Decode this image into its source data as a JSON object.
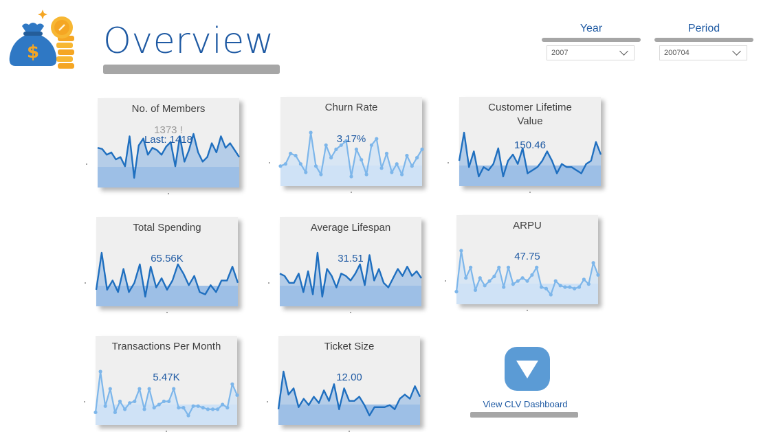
{
  "header": {
    "title": "Overview",
    "logo_icon": "money-bag-coins-icon"
  },
  "filters": {
    "year": {
      "label": "Year",
      "value": "2007"
    },
    "period": {
      "label": "Period",
      "value": "200704"
    }
  },
  "colors": {
    "accent": "#1f5aa3",
    "line_dark": "#1f6fbf",
    "line_light": "#7db6ea",
    "fill_dark": "#9dbfe6",
    "fill_light": "#cfe2f6",
    "card_bg": "#efefef",
    "bar_grey": "#a6a6a6"
  },
  "cards": [
    {
      "title": "No. of Members",
      "value": "Last: 1418",
      "ghost": "1373 !",
      "style": "dark",
      "series": [
        30,
        29,
        24,
        26,
        20,
        22,
        14,
        40,
        4,
        32,
        38,
        24,
        30,
        28,
        24,
        31,
        35,
        14,
        40,
        18,
        28,
        42,
        26,
        18,
        22,
        34,
        26,
        40,
        30,
        34,
        28,
        22
      ]
    },
    {
      "title": "Churn Rate",
      "value": "3.17%",
      "style": "light",
      "series": [
        14,
        16,
        26,
        24,
        16,
        8,
        46,
        14,
        6,
        34,
        22,
        30,
        34,
        38,
        4,
        30,
        20,
        6,
        34,
        40,
        12,
        26,
        8,
        16,
        6,
        24,
        14,
        22,
        30
      ]
    },
    {
      "title": "Customer Lifetime\nValue",
      "value": "150.46",
      "style": "dark",
      "series": [
        30,
        48,
        26,
        36,
        20,
        26,
        24,
        28,
        38,
        20,
        30,
        34,
        28,
        38,
        22,
        24,
        26,
        30,
        36,
        30,
        22,
        28,
        26,
        26,
        24,
        22,
        28,
        30,
        42,
        34
      ]
    },
    {
      "title": "Total Spending",
      "value": "65.56K",
      "style": "dark",
      "series": [
        26,
        58,
        26,
        34,
        24,
        44,
        24,
        32,
        48,
        20,
        46,
        28,
        36,
        26,
        34,
        48,
        40,
        30,
        38,
        24,
        22,
        30,
        24,
        34,
        34,
        46,
        32
      ]
    },
    {
      "title": "Average Lifespan",
      "value": "31.51",
      "style": "dark",
      "series": [
        36,
        34,
        28,
        28,
        36,
        20,
        38,
        18,
        54,
        16,
        40,
        34,
        24,
        36,
        34,
        30,
        36,
        44,
        26,
        52,
        30,
        40,
        28,
        24,
        32,
        40,
        34,
        42,
        34,
        38,
        32
      ]
    },
    {
      "title": "ARPU",
      "value": "47.75",
      "style": "light",
      "series": [
        6,
        60,
        24,
        38,
        8,
        24,
        14,
        20,
        26,
        38,
        12,
        38,
        16,
        20,
        24,
        20,
        28,
        38,
        12,
        10,
        2,
        20,
        14,
        12,
        12,
        10,
        12,
        22,
        16,
        44,
        28
      ]
    },
    {
      "title": "Transactions Per Month",
      "value": "5.47K",
      "style": "light",
      "series": [
        8,
        60,
        16,
        38,
        8,
        22,
        12,
        20,
        22,
        38,
        12,
        38,
        14,
        18,
        22,
        22,
        38,
        14,
        14,
        4,
        16,
        16,
        14,
        12,
        12,
        12,
        18,
        14,
        44,
        30
      ]
    },
    {
      "title": "Ticket Size",
      "value": "12.00",
      "style": "dark",
      "series": [
        26,
        62,
        40,
        46,
        28,
        36,
        30,
        38,
        32,
        44,
        34,
        50,
        26,
        46,
        34,
        34,
        38,
        30,
        20,
        28,
        28,
        28,
        30,
        26,
        36,
        40,
        36,
        48,
        38
      ]
    }
  ],
  "clv_button": {
    "label": "View CLV Dashboard",
    "icon": "triangle-down-icon"
  }
}
